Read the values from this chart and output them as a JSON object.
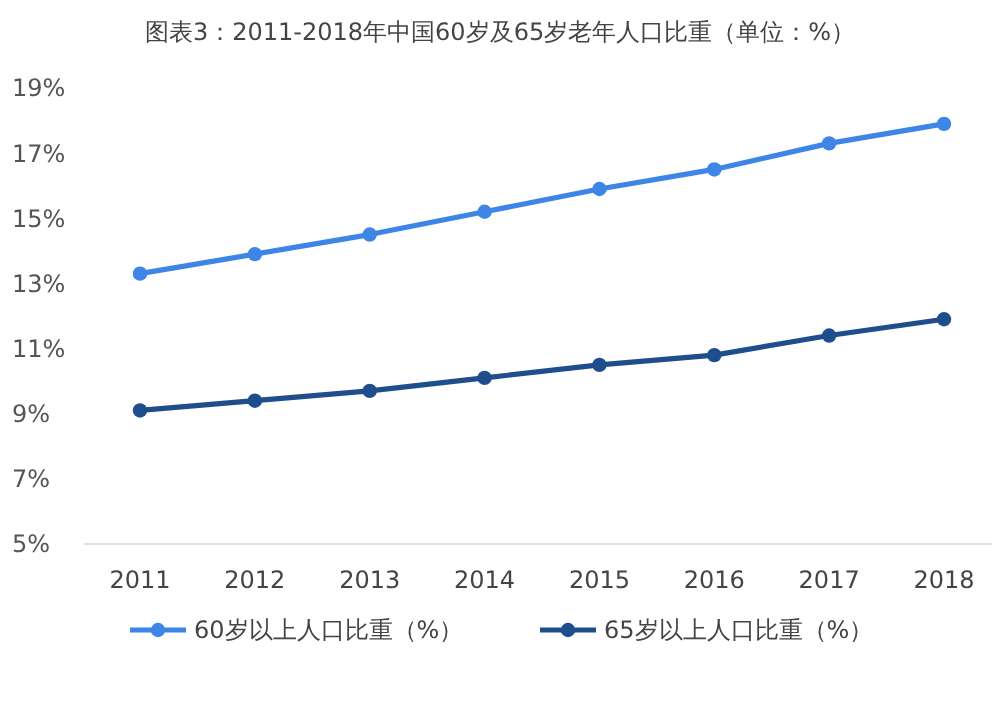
{
  "chart_data": {
    "type": "line",
    "title": "图表3：2011-2018年中国60岁及65岁老年人口比重（单位：%）",
    "categories": [
      "2011",
      "2012",
      "2013",
      "2014",
      "2015",
      "2016",
      "2017",
      "2018"
    ],
    "series": [
      {
        "name": "60岁以上人口比重（%）",
        "color": "#3d85e6",
        "values": [
          13.3,
          13.9,
          14.5,
          15.2,
          15.9,
          16.5,
          17.3,
          17.9
        ]
      },
      {
        "name": "65岁以上人口比重（%）",
        "color": "#1f4e8c",
        "values": [
          9.1,
          9.4,
          9.7,
          10.1,
          10.5,
          10.8,
          11.4,
          11.9
        ]
      }
    ],
    "ylim": [
      5,
      19
    ],
    "yticks": [
      {
        "value": 5,
        "label": "5%"
      },
      {
        "value": 7,
        "label": "7%"
      },
      {
        "value": 9,
        "label": "9%"
      },
      {
        "value": 11,
        "label": "11%"
      },
      {
        "value": 13,
        "label": "13%"
      },
      {
        "value": 15,
        "label": "15%"
      },
      {
        "value": 17,
        "label": "17%"
      },
      {
        "value": 19,
        "label": "19%"
      }
    ],
    "grid": false,
    "legend": "bottom",
    "marker": "circle",
    "line_style": "solid"
  }
}
